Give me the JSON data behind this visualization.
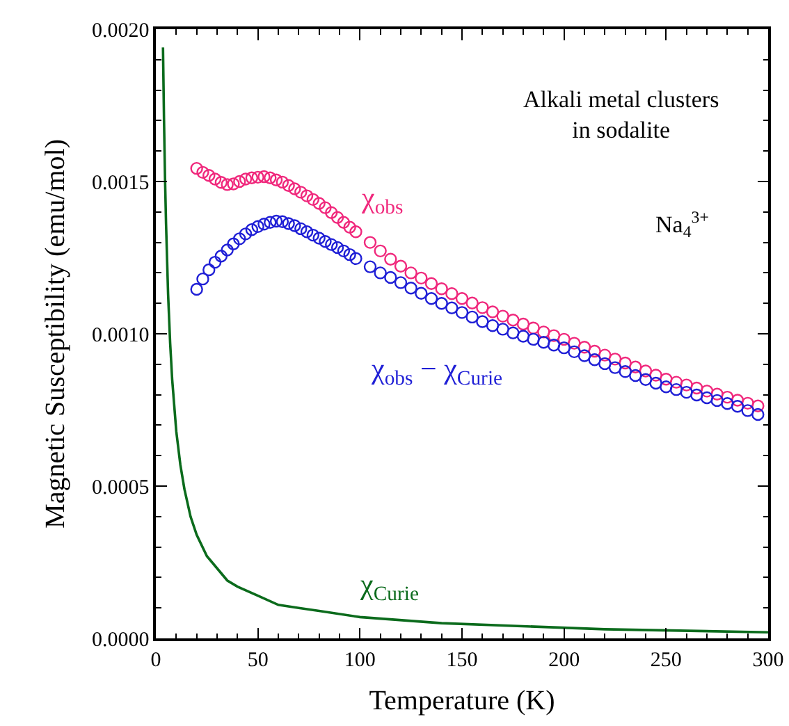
{
  "chart_data": {
    "type": "scatter",
    "xlabel": "Temperature (K)",
    "ylabel": "Magnetic Susceptibility (emu/mol)",
    "annotations": [
      "Alkali metal clusters\nin sodalite",
      "Na$_{4}$$^{3+}$"
    ],
    "xlim": [
      0,
      300
    ],
    "xticks": [
      0,
      50,
      100,
      150,
      200,
      250,
      300
    ],
    "ylim": [
      0,
      0.002
    ],
    "yticks": [
      {
        "value": 0,
        "label": "0.0000"
      },
      {
        "value": 0.0005,
        "label": "0.0005"
      },
      {
        "value": 0.001,
        "label": "0.0010"
      },
      {
        "value": 0.0015,
        "label": "0.0015"
      },
      {
        "value": 0.002,
        "label": "0.0020"
      }
    ],
    "grid": false,
    "legend": false,
    "marker": "circle",
    "line_style": "solid",
    "series": [
      {
        "name": "χ$_{obs}$",
        "color": "#f0287c",
        "x": [
          20,
          23,
          26,
          29,
          32,
          35,
          38,
          41,
          44,
          47,
          50,
          53,
          56,
          59,
          62,
          65,
          68,
          71,
          74,
          77,
          80,
          83,
          86,
          89,
          92,
          95,
          98,
          105,
          110,
          115,
          120,
          125,
          130,
          135,
          140,
          145,
          150,
          155,
          160,
          165,
          170,
          175,
          180,
          185,
          190,
          195,
          200,
          205,
          210,
          215,
          220,
          225,
          230,
          235,
          240,
          245,
          250,
          255,
          260,
          265,
          270,
          275,
          280,
          285,
          290,
          295
        ],
        "values": [
          0.001543,
          0.00153,
          0.00152,
          0.001508,
          0.001497,
          0.00149,
          0.001492,
          0.0015,
          0.001508,
          0.001512,
          0.001514,
          0.001516,
          0.001512,
          0.001505,
          0.001498,
          0.001487,
          0.001476,
          0.001465,
          0.001453,
          0.001441,
          0.001428,
          0.001414,
          0.001398,
          0.001382,
          0.001366,
          0.00135,
          0.001335,
          0.0013,
          0.001272,
          0.001245,
          0.001222,
          0.0012,
          0.001183,
          0.001165,
          0.001148,
          0.001132,
          0.001116,
          0.001101,
          0.001086,
          0.001072,
          0.001058,
          0.001045,
          0.001032,
          0.001019,
          0.001006,
          0.000994,
          0.000982,
          0.000969,
          0.000956,
          0.000943,
          0.00093,
          0.000917,
          0.000904,
          0.000891,
          0.000878,
          0.000864,
          0.000851,
          0.000841,
          0.000832,
          0.000822,
          0.000812,
          0.000802,
          0.000792,
          0.000782,
          0.000772,
          0.000763
        ]
      },
      {
        "name": "χ$_{obs}$ − χ$_{Curie}$",
        "color": "#1f1fd6",
        "x": [
          20,
          23,
          26,
          29,
          32,
          35,
          38,
          41,
          44,
          47,
          50,
          53,
          56,
          59,
          62,
          65,
          68,
          71,
          74,
          77,
          80,
          83,
          86,
          89,
          92,
          95,
          98,
          105,
          110,
          115,
          120,
          125,
          130,
          135,
          140,
          145,
          150,
          155,
          160,
          165,
          170,
          175,
          180,
          185,
          190,
          195,
          200,
          205,
          210,
          215,
          220,
          225,
          230,
          235,
          240,
          245,
          250,
          255,
          260,
          265,
          270,
          275,
          280,
          285,
          290,
          295
        ],
        "values": [
          0.001146,
          0.00118,
          0.00121,
          0.001235,
          0.001255,
          0.001275,
          0.001295,
          0.001312,
          0.001328,
          0.001342,
          0.001352,
          0.00136,
          0.001366,
          0.00137,
          0.001368,
          0.001362,
          0.001355,
          0.001345,
          0.001335,
          0.001324,
          0.001314,
          0.001303,
          0.001293,
          0.001283,
          0.001272,
          0.00126,
          0.001247,
          0.00122,
          0.0012,
          0.001185,
          0.001168,
          0.00115,
          0.001133,
          0.001116,
          0.0011,
          0.001085,
          0.00107,
          0.001055,
          0.00104,
          0.001027,
          0.001015,
          0.001003,
          0.000992,
          0.000982,
          0.000972,
          0.000963,
          0.000954,
          0.000941,
          0.000928,
          0.000915,
          0.000902,
          0.000889,
          0.000876,
          0.000863,
          0.00085,
          0.000838,
          0.000826,
          0.000817,
          0.000808,
          0.000799,
          0.00079,
          0.000781,
          0.000771,
          0.000762,
          0.000748,
          0.000735
        ]
      },
      {
        "name": "χ$_{Curie}$",
        "type": "line",
        "marker": "none",
        "color": "#0b6b1c",
        "x": [
          3.5,
          4,
          4.5,
          5,
          6,
          7,
          8,
          10,
          12,
          14,
          17,
          20,
          25,
          30,
          35,
          40,
          50,
          60,
          70,
          80,
          100,
          140,
          220,
          300
        ],
        "values": [
          0.00194,
          0.0017,
          0.00151,
          0.00136,
          0.00113,
          0.00097,
          0.00085,
          0.00068,
          0.00057,
          0.00049,
          0.0004,
          0.00034,
          0.00027,
          0.00023,
          0.00019,
          0.00017,
          0.00014,
          0.00011,
          0.0001,
          9e-05,
          7e-05,
          5e-05,
          3e-05,
          2e-05
        ]
      }
    ]
  }
}
